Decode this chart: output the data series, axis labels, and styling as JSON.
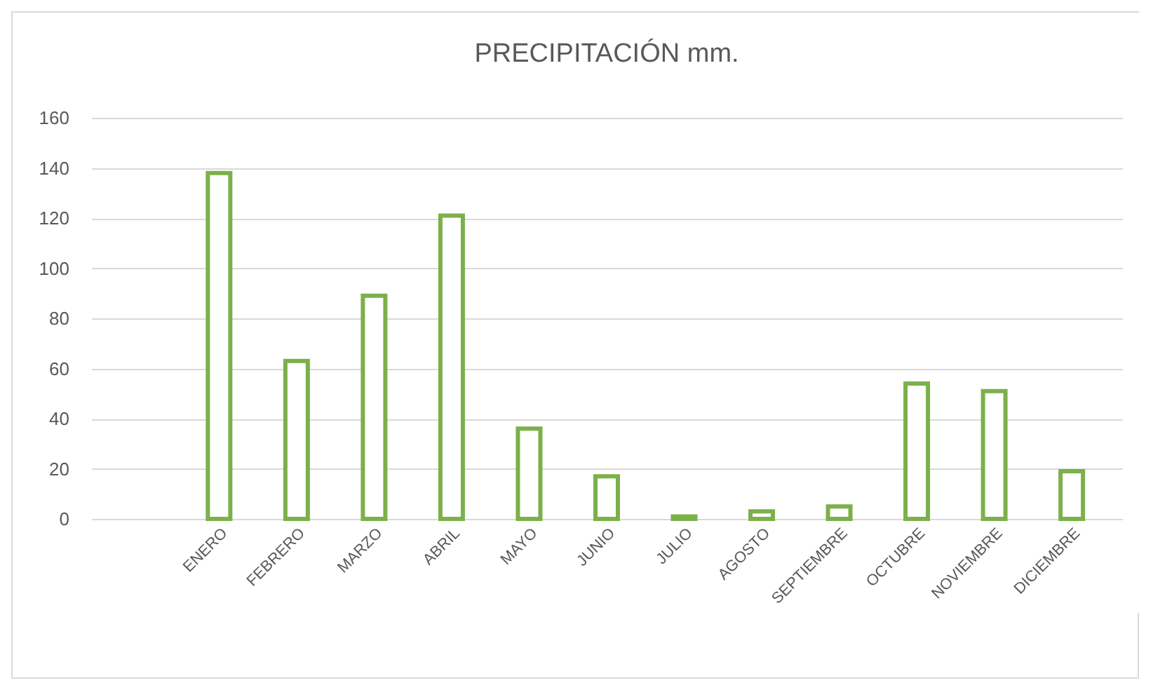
{
  "chart_data": {
    "type": "bar",
    "title": "PRECIPITACIÓN mm.",
    "categories": [
      "ENERO",
      "FEBRERO",
      "MARZO",
      "ABRIL",
      "MAYO",
      "JUNIO",
      "JULIO",
      "AGOSTO",
      "SEPTIEMBRE",
      "OCTUBRE",
      "NOVIEMBRE",
      "DICIEMBRE"
    ],
    "values": [
      138,
      63,
      89,
      121,
      36,
      17,
      1,
      3,
      5,
      54,
      51,
      19
    ],
    "color": "#7cb04a",
    "ylim": [
      0,
      160
    ],
    "yticks": [
      0,
      20,
      40,
      60,
      80,
      100,
      120,
      140,
      160
    ],
    "grid": "y"
  }
}
